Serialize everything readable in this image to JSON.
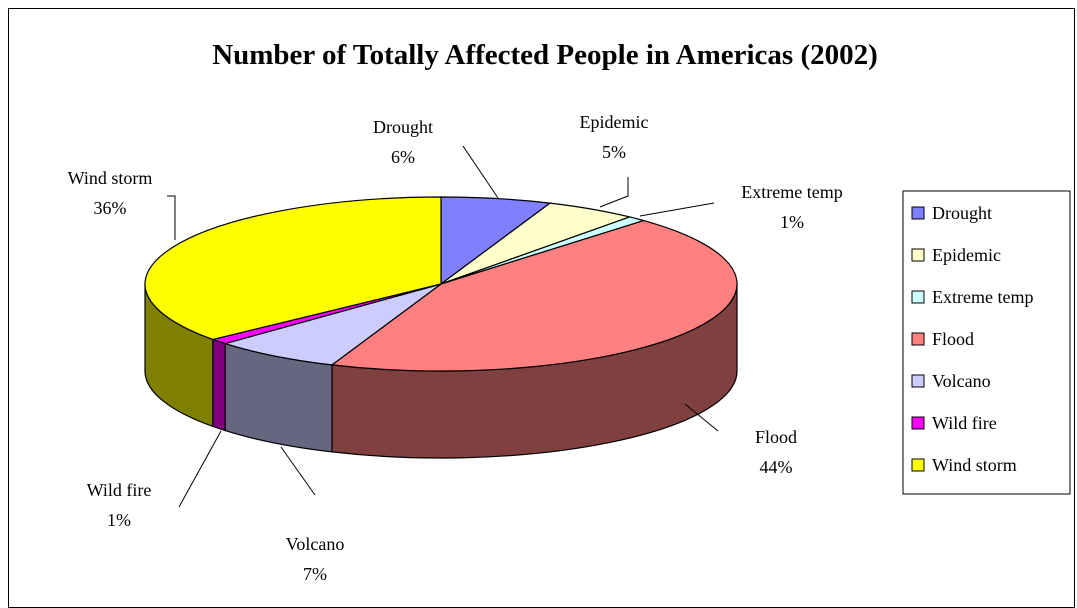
{
  "chart_data": {
    "type": "pie",
    "title": "Number of Totally Affected People in Americas (2002)",
    "is_3d": true,
    "legend_position": "right",
    "slices": [
      {
        "name": "Drought",
        "percent": 6,
        "label": "6%",
        "color": "#8080ff"
      },
      {
        "name": "Epidemic",
        "percent": 5,
        "label": "5%",
        "color": "#ffffcc"
      },
      {
        "name": "Extreme temp",
        "percent": 1,
        "label": "1%",
        "color": "#ccffff"
      },
      {
        "name": "Flood",
        "percent": 44,
        "label": "44%",
        "color": "#ff8080"
      },
      {
        "name": "Volcano",
        "percent": 7,
        "label": "7%",
        "color": "#ccccff"
      },
      {
        "name": "Wild fire",
        "percent": 1,
        "label": "1%",
        "color": "#ff00ff"
      },
      {
        "name": "Wind storm",
        "percent": 36,
        "label": "36%",
        "color": "#ffff00"
      }
    ]
  }
}
